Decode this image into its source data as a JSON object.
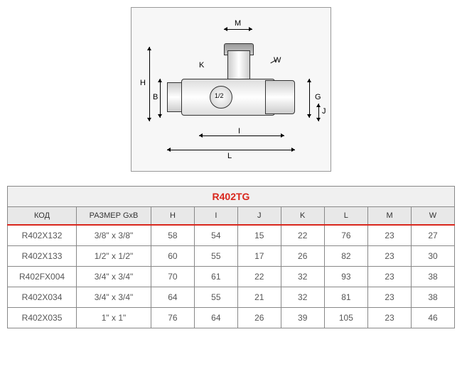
{
  "diagram": {
    "labels": {
      "M": "M",
      "K": "K",
      "W": "W",
      "H": "H",
      "B": "B",
      "G": "G",
      "J": "J",
      "I": "I",
      "L": "L",
      "center": "1/2"
    }
  },
  "table": {
    "title": "R402TG",
    "headers": [
      "КОД",
      "РАЗМЕР GxB",
      "H",
      "I",
      "J",
      "K",
      "L",
      "M",
      "W"
    ],
    "rows": [
      [
        "R402X132",
        "3/8\" x 3/8\"",
        "58",
        "54",
        "15",
        "22",
        "76",
        "23",
        "27"
      ],
      [
        "R402X133",
        "1/2\" x 1/2\"",
        "60",
        "55",
        "17",
        "26",
        "82",
        "23",
        "30"
      ],
      [
        "R402FX004",
        "3/4\" x 3/4\"",
        "70",
        "61",
        "22",
        "32",
        "93",
        "23",
        "38"
      ],
      [
        "R402X034",
        "3/4\" x 3/4\"",
        "64",
        "55",
        "21",
        "32",
        "81",
        "23",
        "38"
      ],
      [
        "R402X035",
        "1\" x 1\"",
        "76",
        "64",
        "26",
        "39",
        "105",
        "23",
        "46"
      ]
    ],
    "col_widths": [
      "90px",
      "100px",
      "55px",
      "55px",
      "55px",
      "55px",
      "55px",
      "55px",
      "55px"
    ],
    "title_color": "#d9261c",
    "header_bg": "#e8e8e8",
    "border_color": "#888"
  }
}
